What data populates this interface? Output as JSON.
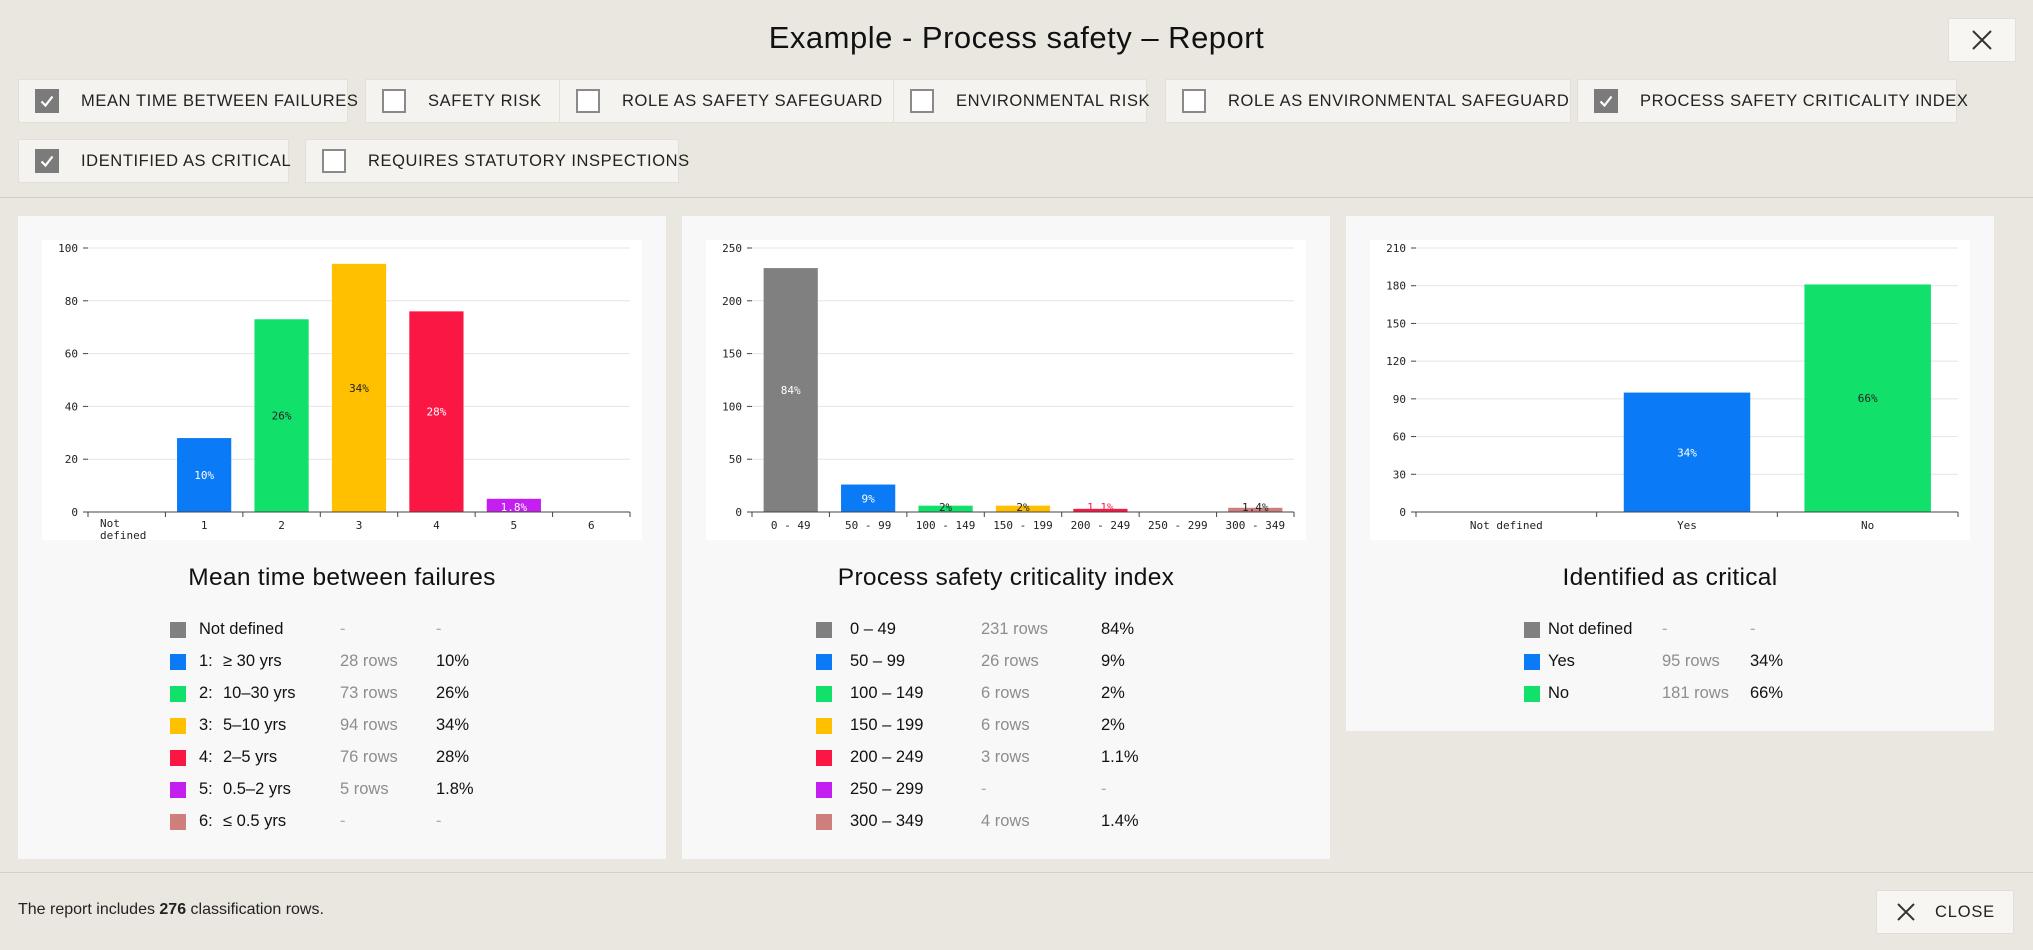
{
  "header": {
    "title": "Example - Process safety – Report"
  },
  "filters": [
    {
      "label": "MEAN TIME BETWEEN FAILURES",
      "checked": true
    },
    {
      "label": "SAFETY RISK",
      "checked": false
    },
    {
      "label": "ROLE AS SAFETY SAFEGUARD",
      "checked": false
    },
    {
      "label": "ENVIRONMENTAL RISK",
      "checked": false
    },
    {
      "label": "ROLE AS ENVIRONMENTAL SAFEGUARD",
      "checked": false
    },
    {
      "label": "PROCESS SAFETY CRITICALITY INDEX",
      "checked": true
    },
    {
      "label": "IDENTIFIED AS CRITICAL",
      "checked": true
    },
    {
      "label": "REQUIRES STATUTORY INSPECTIONS",
      "checked": false
    }
  ],
  "panels": [
    {
      "title": "Mean time between failures",
      "legend": [
        {
          "code": "",
          "label": "Not defined",
          "rows": "-",
          "pct": "-",
          "color": "#808080"
        },
        {
          "code": "1:",
          "label": "≥ 30 yrs",
          "rows": "28 rows",
          "pct": "10%",
          "color": "#0a7af7"
        },
        {
          "code": "2:",
          "label": "10–30 yrs",
          "rows": "73 rows",
          "pct": "26%",
          "color": "#11e06b"
        },
        {
          "code": "3:",
          "label": "5–10 yrs",
          "rows": "94 rows",
          "pct": "34%",
          "color": "#ffc000"
        },
        {
          "code": "4:",
          "label": "2–5 yrs",
          "rows": "76 rows",
          "pct": "28%",
          "color": "#fa1744"
        },
        {
          "code": "5:",
          "label": "0.5–2 yrs",
          "rows": "5 rows",
          "pct": "1.8%",
          "color": "#c41ff0"
        },
        {
          "code": "6:",
          "label": "≤ 0.5 yrs",
          "rows": "-",
          "pct": "-",
          "color": "#cd7e7d"
        }
      ]
    },
    {
      "title": "Process safety criticality index",
      "legend": [
        {
          "code": "",
          "label": "0 – 49",
          "rows": "231 rows",
          "pct": "84%",
          "color": "#808080"
        },
        {
          "code": "",
          "label": "50 – 99",
          "rows": "26 rows",
          "pct": "9%",
          "color": "#0a7af7"
        },
        {
          "code": "",
          "label": "100 – 149",
          "rows": "6 rows",
          "pct": "2%",
          "color": "#11e06b"
        },
        {
          "code": "",
          "label": "150 – 199",
          "rows": "6 rows",
          "pct": "2%",
          "color": "#ffc000"
        },
        {
          "code": "",
          "label": "200 – 249",
          "rows": "3 rows",
          "pct": "1.1%",
          "color": "#fa1744"
        },
        {
          "code": "",
          "label": "250 – 299",
          "rows": "-",
          "pct": "-",
          "color": "#c41ff0"
        },
        {
          "code": "",
          "label": "300 – 349",
          "rows": "4 rows",
          "pct": "1.4%",
          "color": "#cd7e7d"
        }
      ]
    },
    {
      "title": "Identified as critical",
      "legend": [
        {
          "code": "",
          "label": "Not defined",
          "rows": "-",
          "pct": "-",
          "color": "#808080"
        },
        {
          "code": "",
          "label": "Yes",
          "rows": "95 rows",
          "pct": "34%",
          "color": "#0a7af7"
        },
        {
          "code": "",
          "label": "No",
          "rows": "181 rows",
          "pct": "66%",
          "color": "#11e06b"
        }
      ]
    }
  ],
  "chart_data": [
    {
      "type": "bar",
      "categories": [
        "Not defined",
        "1",
        "2",
        "3",
        "4",
        "5",
        "6"
      ],
      "values": [
        0,
        28,
        73,
        94,
        76,
        5,
        0
      ],
      "labels": [
        "",
        "10%",
        "26%",
        "34%",
        "28%",
        "1.8%",
        ""
      ],
      "colors": [
        "#808080",
        "#0a7af7",
        "#11e06b",
        "#ffc000",
        "#fa1744",
        "#c41ff0",
        "#cd7e7d"
      ],
      "label_colors": [
        "#fff",
        "#fff",
        "#222",
        "#222",
        "#fff",
        "#fff",
        "#fff"
      ],
      "ylim": [
        0,
        100
      ],
      "yticks": [
        0,
        20,
        40,
        60,
        80,
        100
      ],
      "grid": true
    },
    {
      "type": "bar",
      "categories": [
        "0 - 49",
        "50 - 99",
        "100 - 149",
        "150 - 199",
        "200 - 249",
        "250 - 299",
        "300 - 349"
      ],
      "values": [
        231,
        26,
        6,
        6,
        3,
        0,
        4
      ],
      "labels": [
        "84%",
        "9%",
        "2%",
        "2%",
        "1.1%",
        "",
        "1.4%"
      ],
      "colors": [
        "#808080",
        "#0a7af7",
        "#11e06b",
        "#ffc000",
        "#fa1744",
        "#c41ff0",
        "#cd7e7d"
      ],
      "label_colors": [
        "#fff",
        "#fff",
        "#222",
        "#222",
        "#fa1744",
        "#fff",
        "#222"
      ],
      "ylim": [
        0,
        250
      ],
      "yticks": [
        0,
        50,
        100,
        150,
        200,
        250
      ],
      "grid": true
    },
    {
      "type": "bar",
      "categories": [
        "Not defined",
        "Yes",
        "No"
      ],
      "values": [
        0,
        95,
        181
      ],
      "labels": [
        "",
        "34%",
        "66%"
      ],
      "colors": [
        "#808080",
        "#0a7af7",
        "#11e06b"
      ],
      "label_colors": [
        "#fff",
        "#fff",
        "#222"
      ],
      "ylim": [
        0,
        210
      ],
      "yticks": [
        0,
        30,
        60,
        90,
        120,
        150,
        180,
        210
      ],
      "grid": true
    }
  ],
  "footer": {
    "text_before": "The report includes ",
    "count": "276",
    "text_after": " classification rows.",
    "close_label": "CLOSE"
  }
}
